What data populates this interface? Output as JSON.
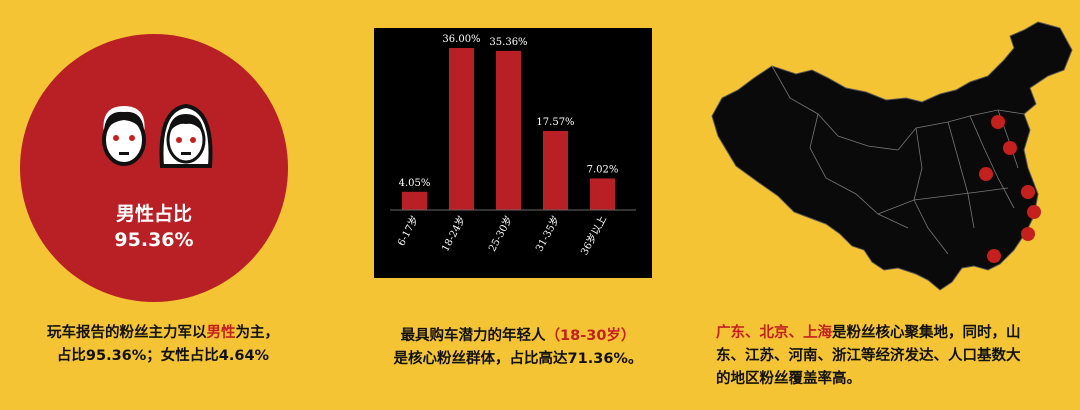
{
  "gender": {
    "label": "男性占比",
    "value": "95.36%",
    "male_share": 95.36,
    "caption_line1_pre": "玩车报告的粉丝主力军以",
    "caption_line1_highlight": "男性",
    "caption_line1_post": "为主，",
    "caption_line2": "占比95.36%；女性占比4.64%"
  },
  "age": {
    "caption_line1_pre": "最具购车潜力的年轻人",
    "caption_line1_highlight": "（18-30岁）",
    "caption_line2": "是核心粉丝群体，占比高达71.36%。"
  },
  "chart_data": {
    "type": "bar",
    "categories": [
      "6-17岁",
      "18-24岁",
      "25-30岁",
      "31-35岁",
      "36岁以上"
    ],
    "values": [
      4.05,
      36.0,
      35.36,
      17.57,
      7.02
    ],
    "data_labels": [
      "4.05%",
      "36.00%",
      "35.36%",
      "17.57%",
      "7.02%"
    ],
    "ylim": [
      0,
      36
    ],
    "bar_color": "#b82025",
    "background": "#000000"
  },
  "region": {
    "caption_highlight": "广东、北京、上海",
    "caption_line1_post": "是粉丝核心聚集地，同时，山",
    "caption_line2": "东、江苏、河南、浙江等经济发达、人口基数大",
    "caption_line3": "的地区粉丝覆盖率高。"
  },
  "colors": {
    "accent": "#b82025",
    "background": "#f5c434"
  }
}
